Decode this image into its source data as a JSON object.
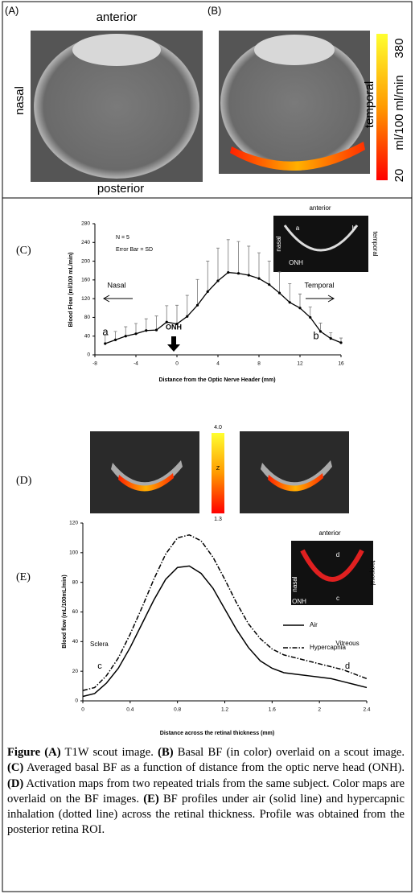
{
  "panel_ab": {
    "label_a": "(A)",
    "label_b": "(B)",
    "anterior": "anterior",
    "nasal": "nasal",
    "posterior": "posterior",
    "temporal": "temporal",
    "colorbar_max": "380",
    "colorbar_min": "20",
    "colorbar_unit": "ml/100 ml/min"
  },
  "chart_data": [
    {
      "type": "line",
      "panel_label": "(C)",
      "x_label": "Distance from the Optic Nerve Header (mm)",
      "y_label": "Blood Flow (ml/100 mL/min)",
      "annotations": [
        "N = 5",
        "Error Bar = SD",
        "Nasal",
        "Temporal",
        "a",
        "b",
        "ONH"
      ],
      "inset_labels": [
        "anterior",
        "nasal",
        "temporal",
        "a",
        "b",
        "ONH"
      ],
      "x": [
        -7,
        -6,
        -5,
        -4,
        -3,
        -2,
        -1,
        0,
        1,
        2,
        3,
        4,
        5,
        6,
        7,
        8,
        9,
        10,
        11,
        12,
        13,
        14,
        15,
        16
      ],
      "values": [
        24,
        32,
        40,
        45,
        52,
        53,
        70,
        66,
        82,
        106,
        135,
        158,
        176,
        174,
        170,
        163,
        150,
        132,
        112,
        100,
        80,
        50,
        35,
        26
      ],
      "errors": [
        18,
        18,
        20,
        22,
        25,
        30,
        35,
        40,
        45,
        55,
        65,
        70,
        70,
        68,
        62,
        55,
        50,
        45,
        40,
        30,
        22,
        18,
        12,
        10
      ],
      "color": "#000000",
      "xlim": [
        -8,
        16
      ],
      "xticks": [
        -8,
        -4,
        0,
        4,
        8,
        12,
        16
      ],
      "ylim": [
        0,
        280
      ],
      "yticks": [
        0,
        40,
        80,
        120,
        160,
        200,
        240,
        280
      ]
    },
    {
      "type": "line",
      "panel_label": "(E)",
      "x_label": "Distance across the retinal thickness (mm)",
      "y_label": "Blood flow  (mL/100mL/min)",
      "annotations": [
        "Sclera",
        "c",
        "Vitreous",
        "d"
      ],
      "inset_labels": [
        "anterior",
        "nasal",
        "ONH",
        "d",
        "c",
        "temporal"
      ],
      "x": [
        0,
        0.1,
        0.2,
        0.3,
        0.4,
        0.5,
        0.6,
        0.7,
        0.8,
        0.9,
        1,
        1.1,
        1.2,
        1.3,
        1.4,
        1.5,
        1.6,
        1.7,
        1.8,
        1.9,
        2,
        2.1,
        2.2,
        2.3,
        2.4
      ],
      "series": [
        {
          "name": "Air",
          "color": "#000000",
          "dash": "solid",
          "values": [
            3,
            5,
            12,
            22,
            36,
            52,
            68,
            82,
            90,
            91,
            86,
            76,
            62,
            48,
            36,
            27,
            22,
            19,
            18,
            17,
            16,
            15,
            13,
            11,
            9
          ]
        },
        {
          "name": "Hypercapnia",
          "color": "#000000",
          "dash": "dash-dot",
          "values": [
            7,
            9,
            17,
            29,
            45,
            63,
            82,
            99,
            110,
            112,
            108,
            97,
            82,
            66,
            52,
            42,
            35,
            31,
            29,
            27,
            25,
            23,
            21,
            18,
            15
          ]
        }
      ],
      "xlim": [
        0,
        2.4
      ],
      "xticks": [
        0,
        0.4,
        0.8,
        1.2,
        1.6,
        2,
        2.4
      ],
      "ylim": [
        0,
        120
      ],
      "yticks": [
        0,
        20,
        40,
        60,
        80,
        100,
        120
      ]
    }
  ],
  "panel_d": {
    "label": "(D)",
    "colorbar_max": "4.0",
    "colorbar_title": "Z",
    "colorbar_min": "1.3"
  },
  "caption": [
    {
      "bold": "Figure (A)",
      "text": " T1W scout image. "
    },
    {
      "bold": "(B)",
      "text": " Basal BF (in color) overlaid on a scout image. "
    },
    {
      "bold": "(C)",
      "text": " Averaged basal BF as a function of distance from the optic nerve head (ONH). "
    },
    {
      "bold": "(D)",
      "text": " Activation maps from two repeated trials from the same subject. Color maps are overlaid on the BF images. "
    },
    {
      "bold": "(E)",
      "text": " BF profiles under air (solid line) and hypercapnic inhalation (dotted line) across the retinal thickness. Profile was obtained from the posterior retina ROI."
    }
  ]
}
